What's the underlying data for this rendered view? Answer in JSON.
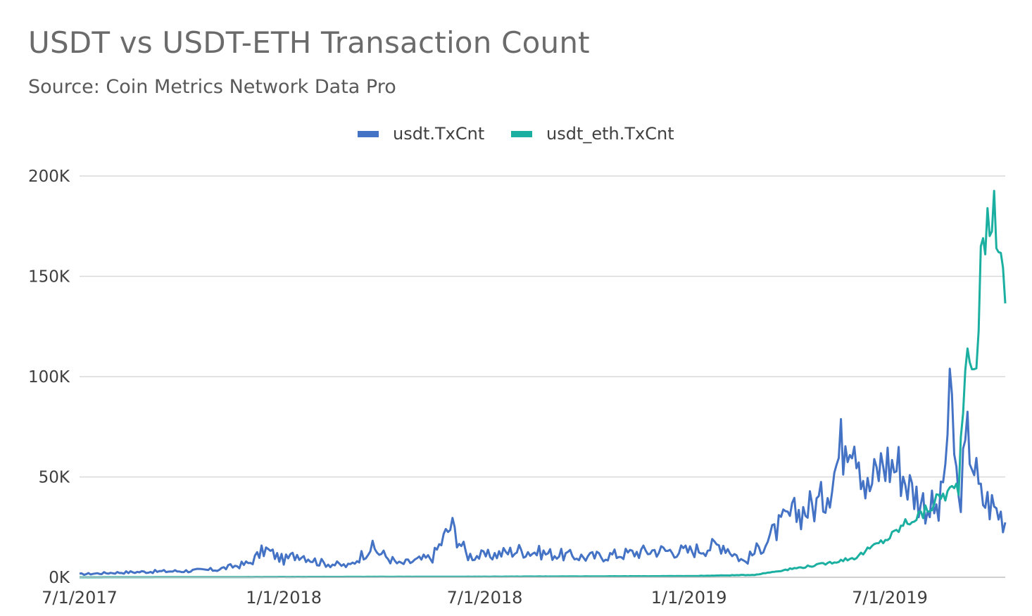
{
  "chart_data": {
    "type": "line",
    "title": "USDT vs USDT-ETH Transaction Count",
    "subtitle": "Source: Coin Metrics Network Data Pro",
    "xlabel": "",
    "ylabel": "",
    "x_ticks": [
      "7/1/2017",
      "1/1/2018",
      "7/1/2018",
      "1/1/2019",
      "7/1/2019"
    ],
    "y_ticks": [
      "0K",
      "50K",
      "100K",
      "150K",
      "200K"
    ],
    "ylim": [
      0,
      200000
    ],
    "xlim": [
      "2017-07-01",
      "2019-10-13"
    ],
    "grid": "horizontal",
    "legend_position": "top-center",
    "x_format": "date",
    "series": [
      {
        "name": "usdt.TxCnt",
        "color": "#4472c4",
        "points": [
          [
            "2017-07-01",
            1500
          ],
          [
            "2017-08-01",
            2300
          ],
          [
            "2017-09-01",
            2800
          ],
          [
            "2017-10-01",
            3100
          ],
          [
            "2017-11-01",
            3800
          ],
          [
            "2017-12-01",
            7000
          ],
          [
            "2017-12-15",
            14000
          ],
          [
            "2018-01-01",
            8500
          ],
          [
            "2018-01-15",
            12000
          ],
          [
            "2018-02-01",
            7500
          ],
          [
            "2018-03-01",
            5500
          ],
          [
            "2018-03-20",
            15000
          ],
          [
            "2018-04-15",
            6500
          ],
          [
            "2018-05-15",
            10000
          ],
          [
            "2018-06-01",
            26000
          ],
          [
            "2018-06-15",
            11000
          ],
          [
            "2018-07-01",
            10500
          ],
          [
            "2018-08-01",
            13500
          ],
          [
            "2018-09-01",
            11500
          ],
          [
            "2018-10-01",
            10000
          ],
          [
            "2018-11-01",
            11500
          ],
          [
            "2018-12-01",
            13500
          ],
          [
            "2019-01-01",
            13000
          ],
          [
            "2019-02-01",
            16500
          ],
          [
            "2019-02-20",
            7500
          ],
          [
            "2019-03-15",
            20000
          ],
          [
            "2019-04-01",
            30000
          ],
          [
            "2019-05-01",
            38000
          ],
          [
            "2019-05-15",
            58000
          ],
          [
            "2019-05-25",
            80000
          ],
          [
            "2019-06-01",
            72000
          ],
          [
            "2019-06-10",
            42000
          ],
          [
            "2019-06-25",
            58000
          ],
          [
            "2019-07-10",
            55000
          ],
          [
            "2019-07-20",
            44000
          ],
          [
            "2019-08-01",
            37000
          ],
          [
            "2019-08-15",
            32000
          ],
          [
            "2019-08-25",
            88000
          ],
          [
            "2019-09-01",
            36000
          ],
          [
            "2019-09-10",
            72000
          ],
          [
            "2019-09-20",
            40000
          ],
          [
            "2019-10-01",
            36000
          ],
          [
            "2019-10-13",
            29000
          ]
        ]
      },
      {
        "name": "usdt_eth.TxCnt",
        "color": "#1aafa0",
        "points": [
          [
            "2017-07-01",
            0
          ],
          [
            "2018-07-01",
            300
          ],
          [
            "2019-01-01",
            600
          ],
          [
            "2019-03-01",
            1200
          ],
          [
            "2019-04-01",
            4000
          ],
          [
            "2019-05-01",
            6500
          ],
          [
            "2019-06-01",
            10000
          ],
          [
            "2019-06-15",
            15000
          ],
          [
            "2019-07-01",
            20000
          ],
          [
            "2019-07-15",
            27000
          ],
          [
            "2019-08-01",
            32000
          ],
          [
            "2019-08-15",
            40000
          ],
          [
            "2019-09-01",
            45000
          ],
          [
            "2019-09-05",
            90000
          ],
          [
            "2019-09-10",
            125000
          ],
          [
            "2019-09-15",
            95000
          ],
          [
            "2019-09-22",
            160000
          ],
          [
            "2019-10-01",
            185000
          ],
          [
            "2019-10-08",
            170000
          ],
          [
            "2019-10-13",
            128000
          ]
        ]
      }
    ]
  }
}
